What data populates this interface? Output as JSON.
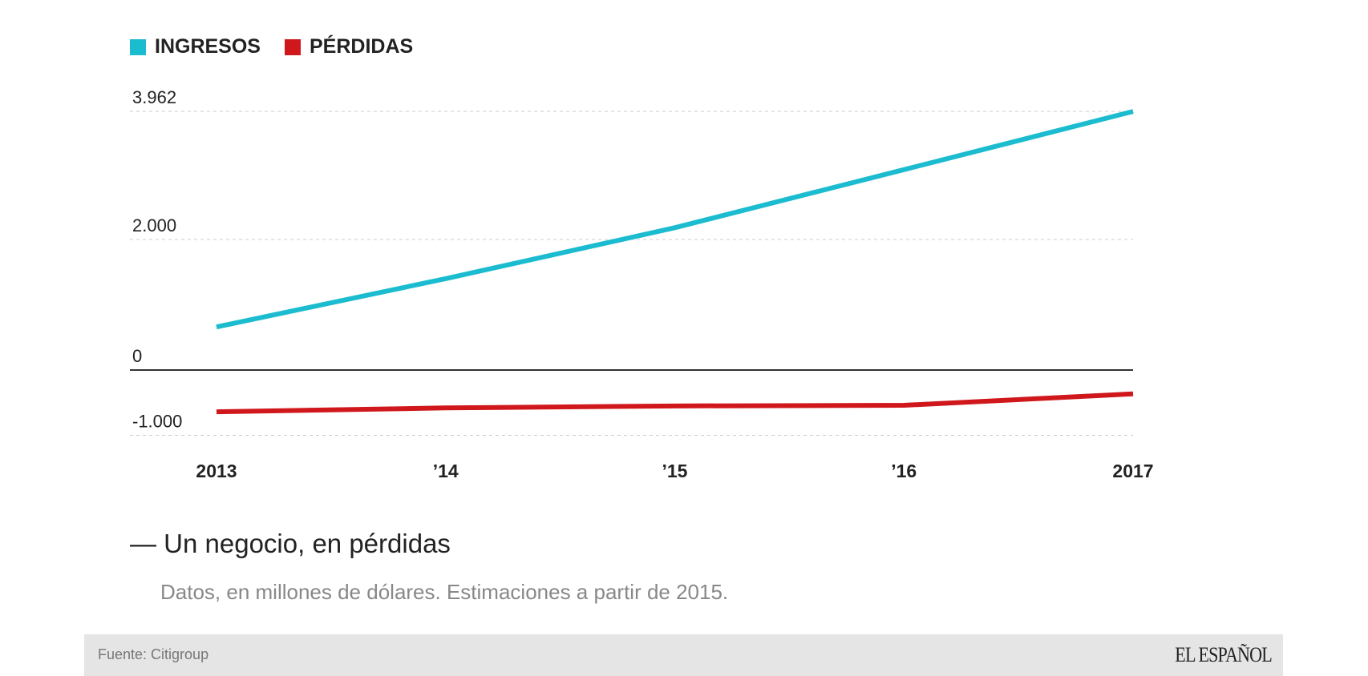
{
  "chart_data": {
    "type": "line",
    "categories": [
      "2013",
      "’14",
      "’15",
      "’16",
      "2017"
    ],
    "series": [
      {
        "name": "INGRESOS",
        "color": "#1bbccf",
        "values": [
          660,
          1400,
          2180,
          3070,
          3962
        ]
      },
      {
        "name": "PÉRDIDAS",
        "color": "#d0181c",
        "values": [
          -640,
          -580,
          -550,
          -540,
          -365
        ]
      }
    ],
    "yticks": [
      {
        "value": 3962,
        "label": "3.962"
      },
      {
        "value": 2000,
        "label": "2.000"
      },
      {
        "value": 0,
        "label": "0"
      },
      {
        "value": -1000,
        "label": "-1.000"
      }
    ],
    "ylim": [
      -1000,
      3962
    ],
    "grid": true,
    "legend": "top-left"
  },
  "title": "— Un negocio, en pérdidas",
  "subtitle": "Datos, en millones de dólares. Estimaciones a partir de 2015.",
  "footer": {
    "source": "Fuente: Citigroup",
    "logo": "EL ESPAÑOL"
  }
}
